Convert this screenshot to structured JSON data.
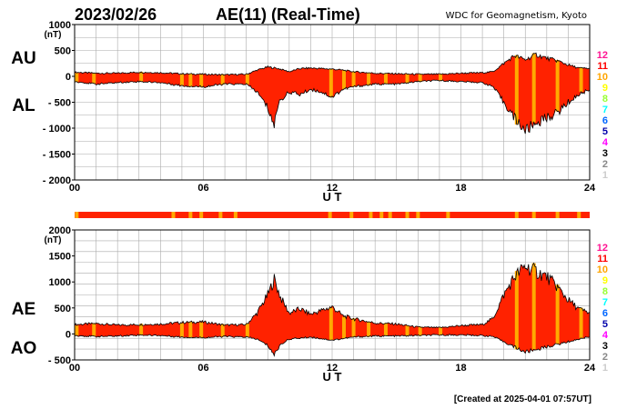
{
  "header": {
    "date": "2023/02/26",
    "title": "AE(11) (Real-Time)",
    "source": "WDC for Geomagnetism, Kyoto"
  },
  "footer": {
    "created": "[Created at 2025-04-01 07:57UT]"
  },
  "colors": {
    "fill": "#ff2200",
    "outline": "#000000",
    "stripe": "#ffaa00",
    "grid": "#aaaaaa"
  },
  "legend": {
    "scale": [
      {
        "label": "12",
        "color": "#ff1493"
      },
      {
        "label": "11",
        "color": "#ff0000"
      },
      {
        "label": "10",
        "color": "#ffa500"
      },
      {
        "label": "9",
        "color": "#ffff00"
      },
      {
        "label": "8",
        "color": "#99ff33"
      },
      {
        "label": "7",
        "color": "#00ffff"
      },
      {
        "label": "6",
        "color": "#0066ff"
      },
      {
        "label": "5",
        "color": "#0000aa"
      },
      {
        "label": "4",
        "color": "#ff00ff"
      },
      {
        "label": "3",
        "color": "#000000"
      },
      {
        "label": "2",
        "color": "#888888"
      },
      {
        "label": "1",
        "color": "#cccccc"
      }
    ]
  },
  "chart_data": [
    {
      "type": "area",
      "id": "au-al",
      "upper_label": "AU",
      "lower_label": "AL",
      "unit_label": "(nT)",
      "xlabel": "U T",
      "xlim": [
        0,
        24
      ],
      "ylim": [
        -2000,
        1000
      ],
      "xticks": [
        {
          "v": 0,
          "label": "00"
        },
        {
          "v": 6,
          "label": "06"
        },
        {
          "v": 12,
          "label": "12"
        },
        {
          "v": 18,
          "label": "18"
        },
        {
          "v": 24,
          "label": "24"
        }
      ],
      "yticks": [
        {
          "v": 1000,
          "label": "1000"
        },
        {
          "v": 500,
          "label": "500"
        },
        {
          "v": 0,
          "label": "0"
        },
        {
          "v": -500,
          "label": "- 500"
        },
        {
          "v": -1000,
          "label": "- 1000"
        },
        {
          "v": -1500,
          "label": "- 1500"
        },
        {
          "v": -2000,
          "label": "- 2000"
        }
      ],
      "series": [
        {
          "name": "AU",
          "x": [
            0,
            1,
            2,
            3,
            4,
            5,
            6,
            7,
            8,
            8.5,
            9,
            9.5,
            10,
            10.5,
            11,
            11.5,
            12,
            12.5,
            13,
            14,
            15,
            16,
            17,
            18,
            19,
            19.5,
            20,
            20.5,
            21,
            21.5,
            22,
            22.5,
            23,
            23.5,
            24
          ],
          "values": [
            80,
            60,
            60,
            80,
            70,
            50,
            40,
            30,
            40,
            120,
            180,
            150,
            90,
            150,
            160,
            150,
            140,
            120,
            90,
            60,
            50,
            40,
            40,
            60,
            70,
            90,
            250,
            400,
            320,
            420,
            350,
            300,
            220,
            160,
            150
          ]
        },
        {
          "name": "AL",
          "x": [
            0,
            1,
            2,
            3,
            4,
            5,
            6,
            7,
            8,
            8.5,
            9,
            9.3,
            9.5,
            10,
            10.5,
            11,
            11.5,
            12,
            12.5,
            13,
            14,
            15,
            16,
            17,
            18,
            19,
            19.5,
            20,
            20.5,
            21,
            21.5,
            22,
            22.5,
            23,
            23.5,
            24
          ],
          "values": [
            -100,
            -150,
            -120,
            -100,
            -120,
            -180,
            -200,
            -150,
            -150,
            -300,
            -600,
            -950,
            -500,
            -300,
            -350,
            -250,
            -300,
            -400,
            -250,
            -200,
            -150,
            -150,
            -100,
            -80,
            -100,
            -120,
            -200,
            -500,
            -800,
            -1050,
            -900,
            -800,
            -700,
            -500,
            -350,
            -250
          ]
        }
      ]
    },
    {
      "type": "area",
      "id": "ae-ao",
      "upper_label": "AE",
      "lower_label": "AO",
      "unit_label": "(nT)",
      "xlabel": "U T",
      "xlim": [
        0,
        24
      ],
      "ylim": [
        -500,
        2000
      ],
      "xticks": [
        {
          "v": 0,
          "label": "00"
        },
        {
          "v": 6,
          "label": "06"
        },
        {
          "v": 12,
          "label": "12"
        },
        {
          "v": 18,
          "label": "18"
        },
        {
          "v": 24,
          "label": "24"
        }
      ],
      "yticks": [
        {
          "v": 2000,
          "label": "2000"
        },
        {
          "v": 1500,
          "label": "1500"
        },
        {
          "v": 1000,
          "label": "1000"
        },
        {
          "v": 500,
          "label": "500"
        },
        {
          "v": 0,
          "label": "0"
        },
        {
          "v": -500,
          "label": "- 500"
        }
      ],
      "series": [
        {
          "name": "AE",
          "x": [
            0,
            1,
            2,
            3,
            4,
            5,
            6,
            7,
            8,
            8.5,
            9,
            9.3,
            9.6,
            10,
            10.5,
            11,
            11.5,
            12,
            12.5,
            13,
            14,
            15,
            16,
            17,
            18,
            19,
            19.5,
            20,
            20.5,
            21,
            21.5,
            22,
            22.5,
            23,
            23.5,
            24
          ],
          "values": [
            180,
            200,
            170,
            180,
            190,
            220,
            230,
            170,
            180,
            400,
            750,
            1050,
            700,
            400,
            480,
            380,
            450,
            520,
            350,
            290,
            210,
            190,
            130,
            120,
            160,
            180,
            300,
            750,
            1100,
            1300,
            1200,
            1100,
            900,
            650,
            480,
            400
          ]
        },
        {
          "name": "AO",
          "x": [
            0,
            1,
            2,
            3,
            4,
            5,
            6,
            7,
            8,
            8.5,
            9,
            9.3,
            9.6,
            10,
            11,
            12,
            13,
            14,
            15,
            16,
            17,
            18,
            19,
            19.5,
            20,
            20.5,
            21,
            21.5,
            22,
            22.5,
            23,
            23.5,
            24
          ],
          "values": [
            -30,
            -50,
            -40,
            -20,
            -30,
            -60,
            -70,
            -50,
            -60,
            -100,
            -220,
            -400,
            -200,
            -100,
            -60,
            -120,
            -60,
            -40,
            -40,
            -30,
            -20,
            -20,
            -30,
            -50,
            -150,
            -250,
            -350,
            -300,
            -250,
            -200,
            -150,
            -100,
            -50
          ]
        }
      ]
    }
  ],
  "stripe_hours": [
    0.1,
    0.9,
    3.1,
    5.0,
    5.4,
    5.9,
    6.9,
    8.05,
    11.95,
    12.55,
    13.0,
    13.7,
    14.5,
    15.5,
    16.1,
    17.05,
    20.6,
    21.4,
    22.5,
    23.6
  ],
  "status_bar_hours": [
    0.1,
    4.6,
    5.4,
    5.9,
    6.8,
    7.5,
    11.9,
    12.9,
    13.8,
    14.3,
    14.7,
    15.5,
    16.0,
    17.4,
    20.6,
    21.4,
    22.5,
    23.5
  ]
}
